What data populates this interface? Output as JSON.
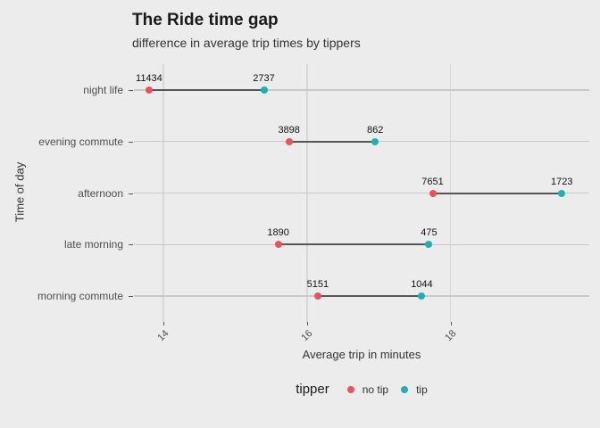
{
  "title": "The Ride time gap",
  "subtitle": "difference in average trip times by tippers",
  "colors": {
    "background": "#ececec",
    "gridline": "#d8d8d8",
    "row_line": "#c9c9c9",
    "segment": "#555555",
    "no_tip": "#e8545c",
    "tip": "#1cb2b2"
  },
  "chart_data": {
    "type": "dumbbell",
    "title": "The Ride time gap",
    "subtitle": "difference in average trip times by tippers",
    "xlabel": "Average trip in minutes",
    "ylabel": "Time of day",
    "x_ticks": [
      14,
      16,
      18
    ],
    "xlim": [
      13.6,
      19.9
    ],
    "grid": "vertical-major-and-category-lines",
    "categories": [
      "night life",
      "evening commute",
      "afternoon",
      "late morning",
      "morning commute"
    ],
    "series": [
      {
        "name": "no tip",
        "color": "#e8545c",
        "values": [
          13.8,
          15.75,
          17.75,
          15.6,
          16.15
        ],
        "point_labels": [
          "11434",
          "3898",
          "7651",
          "1890",
          "5151"
        ]
      },
      {
        "name": "tip",
        "color": "#1cb2b2",
        "values": [
          15.4,
          16.95,
          19.55,
          17.7,
          17.6
        ],
        "point_labels": [
          "2737",
          "862",
          "1723",
          "475",
          "1044"
        ]
      }
    ],
    "legend": {
      "title": "tipper",
      "position": "bottom",
      "entries": [
        {
          "label": "no tip",
          "color": "#e8545c"
        },
        {
          "label": "tip",
          "color": "#1cb2b2"
        }
      ]
    }
  }
}
